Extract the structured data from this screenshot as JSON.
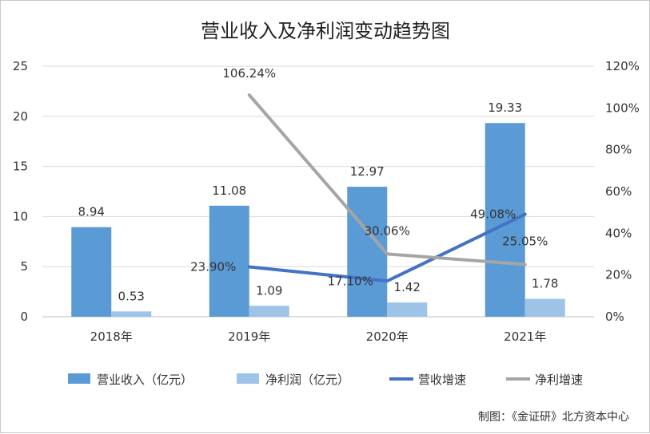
{
  "chart_data": {
    "type": "bar",
    "title": "营业收入及净利润变动趋势图",
    "categories": [
      "2018年",
      "2019年",
      "2020年",
      "2021年"
    ],
    "y_left": {
      "min": 0,
      "max": 25,
      "ticks": [
        "0",
        "5",
        "10",
        "15",
        "20",
        "25"
      ]
    },
    "y_right": {
      "min": 0,
      "max": 120,
      "ticks": [
        "0%",
        "20%",
        "40%",
        "60%",
        "80%",
        "100%",
        "120%"
      ]
    },
    "grid": true,
    "legend_position": "bottom",
    "bar_series": [
      {
        "name": "营业收入（亿元）",
        "color": "#5b9bd5",
        "values": [
          8.94,
          11.08,
          12.97,
          19.33
        ],
        "labels": [
          "8.94",
          "11.08",
          "12.97",
          "19.33"
        ]
      },
      {
        "name": "净利润（亿元）",
        "color": "#9dc3e6",
        "values": [
          0.53,
          1.09,
          1.42,
          1.78
        ],
        "labels": [
          "0.53",
          "1.09",
          "1.42",
          "1.78"
        ]
      }
    ],
    "line_series": [
      {
        "name": "营收增速",
        "color": "#4472c4",
        "values": [
          null,
          23.9,
          17.1,
          49.08
        ],
        "labels": [
          "",
          "23.90%",
          "17.10%",
          "49.08%"
        ]
      },
      {
        "name": "净利增速",
        "color": "#a5a5a5",
        "values": [
          null,
          106.24,
          30.06,
          25.05
        ],
        "labels": [
          "",
          "106.24%",
          "30.06%",
          "25.05%"
        ]
      }
    ]
  },
  "credit": "制图：《金证研》北方资本中心"
}
